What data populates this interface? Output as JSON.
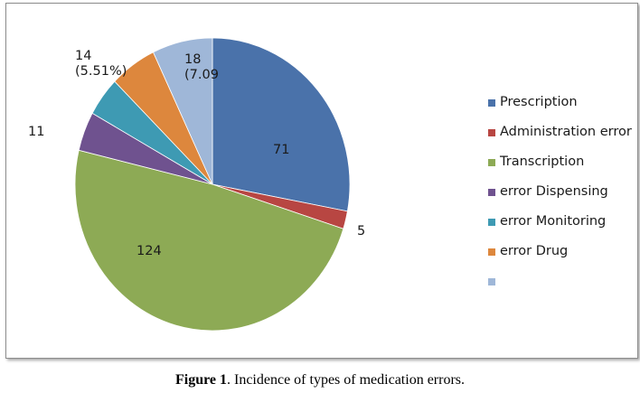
{
  "chart_data": {
    "type": "pie",
    "categories": [
      "Prescription",
      "Administration error",
      "Transcription",
      "error Dispensing",
      "error Monitoring",
      "error Drug",
      ""
    ],
    "values": [
      71,
      5,
      124,
      11,
      11,
      14,
      18
    ],
    "colors": [
      "#4a72aa",
      "#b84642",
      "#8daa55",
      "#6f528f",
      "#3e9ab3",
      "#dd873d",
      "#9fb7d8"
    ],
    "data_labels": [
      "71",
      "5",
      "124",
      "11",
      "",
      "14\n(5.51%)",
      "18\n(7.09"
    ],
    "legend_position": "right"
  },
  "caption": {
    "label": "Figure 1",
    "text": ". Incidence of types of medication errors."
  }
}
